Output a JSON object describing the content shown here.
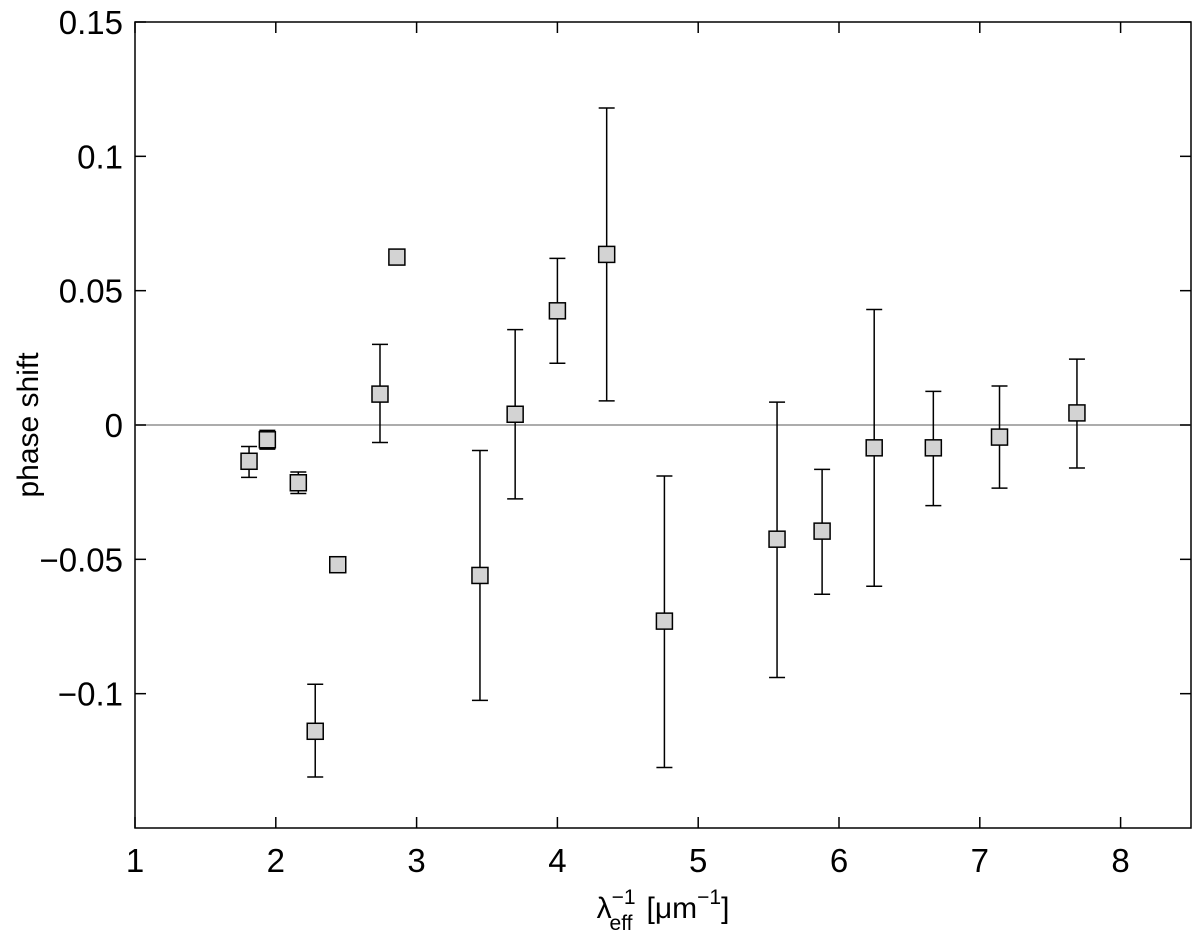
{
  "chart_data": {
    "type": "scatter",
    "title": "",
    "xlabel": {
      "main": "λ",
      "sup": "−1",
      "sub": "eff",
      "unit_open": "[μm",
      "unit_sup": "−1",
      "unit_close": "]"
    },
    "ylabel": "phase shift",
    "xlim": [
      1,
      8.5
    ],
    "ylim": [
      -0.15,
      0.15
    ],
    "x_ticks": [
      1,
      2,
      3,
      4,
      5,
      6,
      7,
      8
    ],
    "x_tick_labels": [
      "1",
      "2",
      "3",
      "4",
      "5",
      "6",
      "7",
      "8"
    ],
    "y_ticks": [
      -0.1,
      -0.05,
      0,
      0.05,
      0.1,
      0.15
    ],
    "y_tick_labels": [
      "−0.1",
      "−0.05",
      "0",
      "0.05",
      "0.1",
      "0.15"
    ],
    "grid": false,
    "reference_line": {
      "y": 0,
      "color": "#909090"
    },
    "marker": {
      "shape": "square",
      "fill": "#d3d3d3",
      "stroke": "#000000"
    },
    "points": [
      {
        "x": 1.81,
        "y": -0.0135,
        "err_low": -0.0195,
        "err_high": -0.008
      },
      {
        "x": 1.94,
        "y": -0.0055,
        "err_low": -0.009,
        "err_high": -0.002
      },
      {
        "x": 2.16,
        "y": -0.0215,
        "err_low": -0.0255,
        "err_high": -0.0175
      },
      {
        "x": 2.28,
        "y": -0.114,
        "err_low": -0.131,
        "err_high": -0.0965
      },
      {
        "x": 2.44,
        "y": -0.052,
        "err_low": -0.053,
        "err_high": -0.051
      },
      {
        "x": 2.74,
        "y": 0.0115,
        "err_low": -0.0065,
        "err_high": 0.03
      },
      {
        "x": 2.86,
        "y": 0.0625,
        "err_low": 0.0615,
        "err_high": 0.0635
      },
      {
        "x": 3.45,
        "y": -0.056,
        "err_low": -0.1025,
        "err_high": -0.0095
      },
      {
        "x": 3.7,
        "y": 0.004,
        "err_low": -0.0275,
        "err_high": 0.0355
      },
      {
        "x": 4.0,
        "y": 0.0425,
        "err_low": 0.023,
        "err_high": 0.062
      },
      {
        "x": 4.35,
        "y": 0.0635,
        "err_low": 0.009,
        "err_high": 0.118
      },
      {
        "x": 4.76,
        "y": -0.073,
        "err_low": -0.1275,
        "err_high": -0.019
      },
      {
        "x": 5.56,
        "y": -0.0425,
        "err_low": -0.094,
        "err_high": 0.0085
      },
      {
        "x": 5.88,
        "y": -0.0395,
        "err_low": -0.063,
        "err_high": -0.0165
      },
      {
        "x": 6.25,
        "y": -0.0085,
        "err_low": -0.06,
        "err_high": 0.043
      },
      {
        "x": 6.67,
        "y": -0.0085,
        "err_low": -0.03,
        "err_high": 0.0125
      },
      {
        "x": 7.14,
        "y": -0.0045,
        "err_low": -0.0235,
        "err_high": 0.0145
      },
      {
        "x": 7.69,
        "y": 0.0045,
        "err_low": -0.016,
        "err_high": 0.0245
      }
    ]
  }
}
